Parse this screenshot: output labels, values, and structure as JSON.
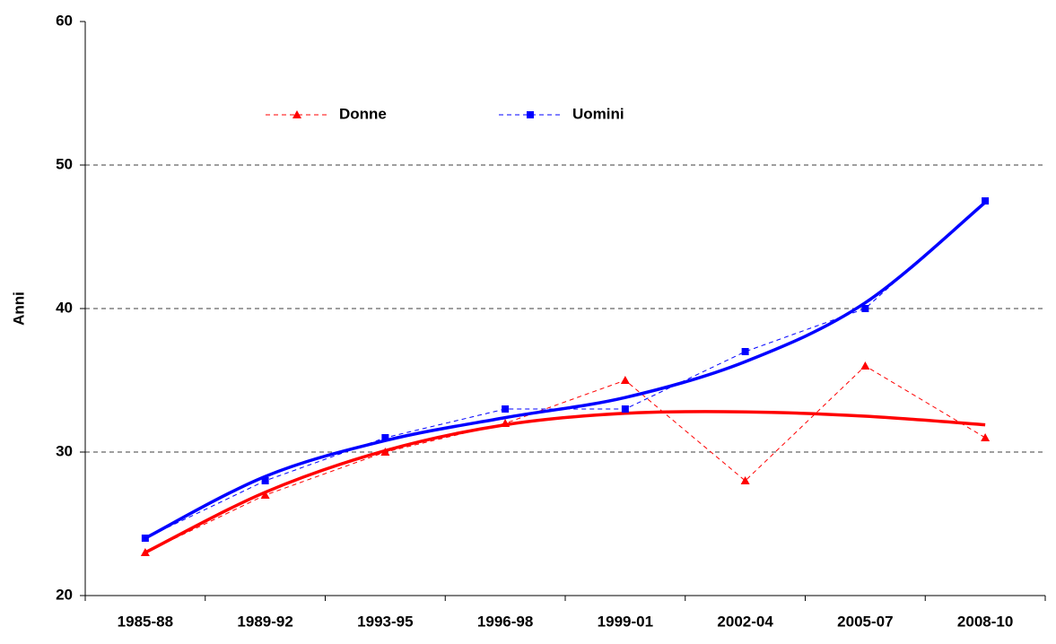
{
  "chart_data": {
    "type": "line",
    "y_label": "Anni",
    "categories": [
      "1985-88",
      "1989-92",
      "1993-95",
      "1996-98",
      "1999-01",
      "2002-04",
      "2005-07",
      "2008-10"
    ],
    "series": [
      {
        "name": "Donne",
        "color": "#ff0000",
        "marker": "triangle",
        "values": [
          23,
          27,
          30,
          32,
          35,
          28,
          36,
          31
        ],
        "trend": [
          23,
          27.2,
          30.1,
          31.9,
          32.7,
          32.8,
          32.5,
          31.9
        ]
      },
      {
        "name": "Uomini",
        "color": "#0000ff",
        "marker": "square",
        "values": [
          24,
          28,
          31,
          33,
          33,
          37,
          40,
          47.5
        ],
        "trend": [
          24,
          28.3,
          30.8,
          32.4,
          33.8,
          36.3,
          40.4,
          47.4
        ]
      }
    ],
    "ylim": [
      20,
      60
    ],
    "yticks": [
      20,
      30,
      40,
      50,
      60
    ],
    "grid": true
  }
}
